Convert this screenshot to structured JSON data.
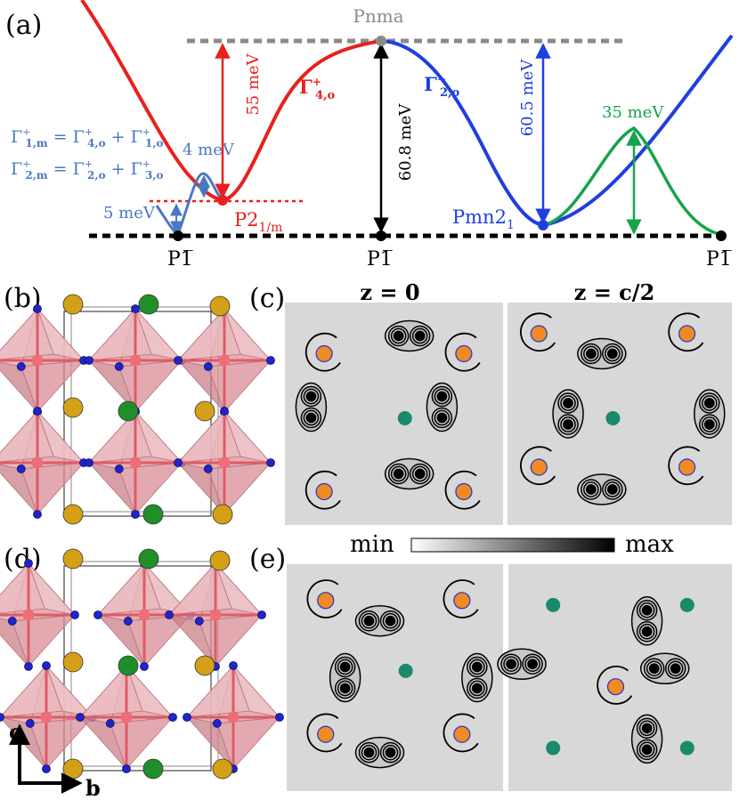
{
  "panel_labels": {
    "a": "(a)",
    "b": "(b)",
    "c": "(c)",
    "d": "(d)",
    "e": "(e)"
  },
  "energy_diagram": {
    "top_phase": "Pnma",
    "ground_phase": "P1̅",
    "monoclinic_phase": "P2",
    "monoclinic_sub": "1/m",
    "orthorhombic_phase": "Pmn2",
    "orthorhombic_sub": "1",
    "barriers": {
      "pnma_to_p21m": "55 meV",
      "pnma_to_p1_center": "60.8 meV",
      "pnma_to_pmn21": "60.5 meV",
      "green_peak": "35 meV",
      "small_barrier": "4 meV",
      "p1_to_p21m": "5 meV"
    },
    "red_mode": {
      "sym": "Γ",
      "sup": "+",
      "sub": "4,o"
    },
    "blue_mode": {
      "sym": "Γ",
      "sup": "−",
      "sub": "2,o"
    },
    "eq1": {
      "lhs": {
        "sym": "Γ",
        "sup": "+",
        "sub": "1,m"
      },
      "t1": {
        "sym": "Γ",
        "sup": "+",
        "sub": "4,o"
      },
      "t2": {
        "sym": "Γ",
        "sup": "+",
        "sub": "1,o"
      }
    },
    "eq2": {
      "lhs": {
        "sym": "Γ",
        "sup": "+",
        "sub": "2,m"
      },
      "t1": {
        "sym": "Γ",
        "sup": "+",
        "sub": "2,o"
      },
      "t2": {
        "sym": "Γ",
        "sup": "+",
        "sub": "3,o"
      }
    },
    "colors": {
      "red": "#e8201e",
      "blue": "#1f3fe0",
      "steelblue": "#4a78c2",
      "green": "#17a34a",
      "gray": "#8a8a8a",
      "black": "#000000"
    }
  },
  "density_maps": {
    "col_left": "z = 0",
    "col_right": "z = c/2",
    "colorbar_min": "min",
    "colorbar_max": "max"
  },
  "axes": {
    "vertical": "c",
    "horizontal": "b"
  }
}
